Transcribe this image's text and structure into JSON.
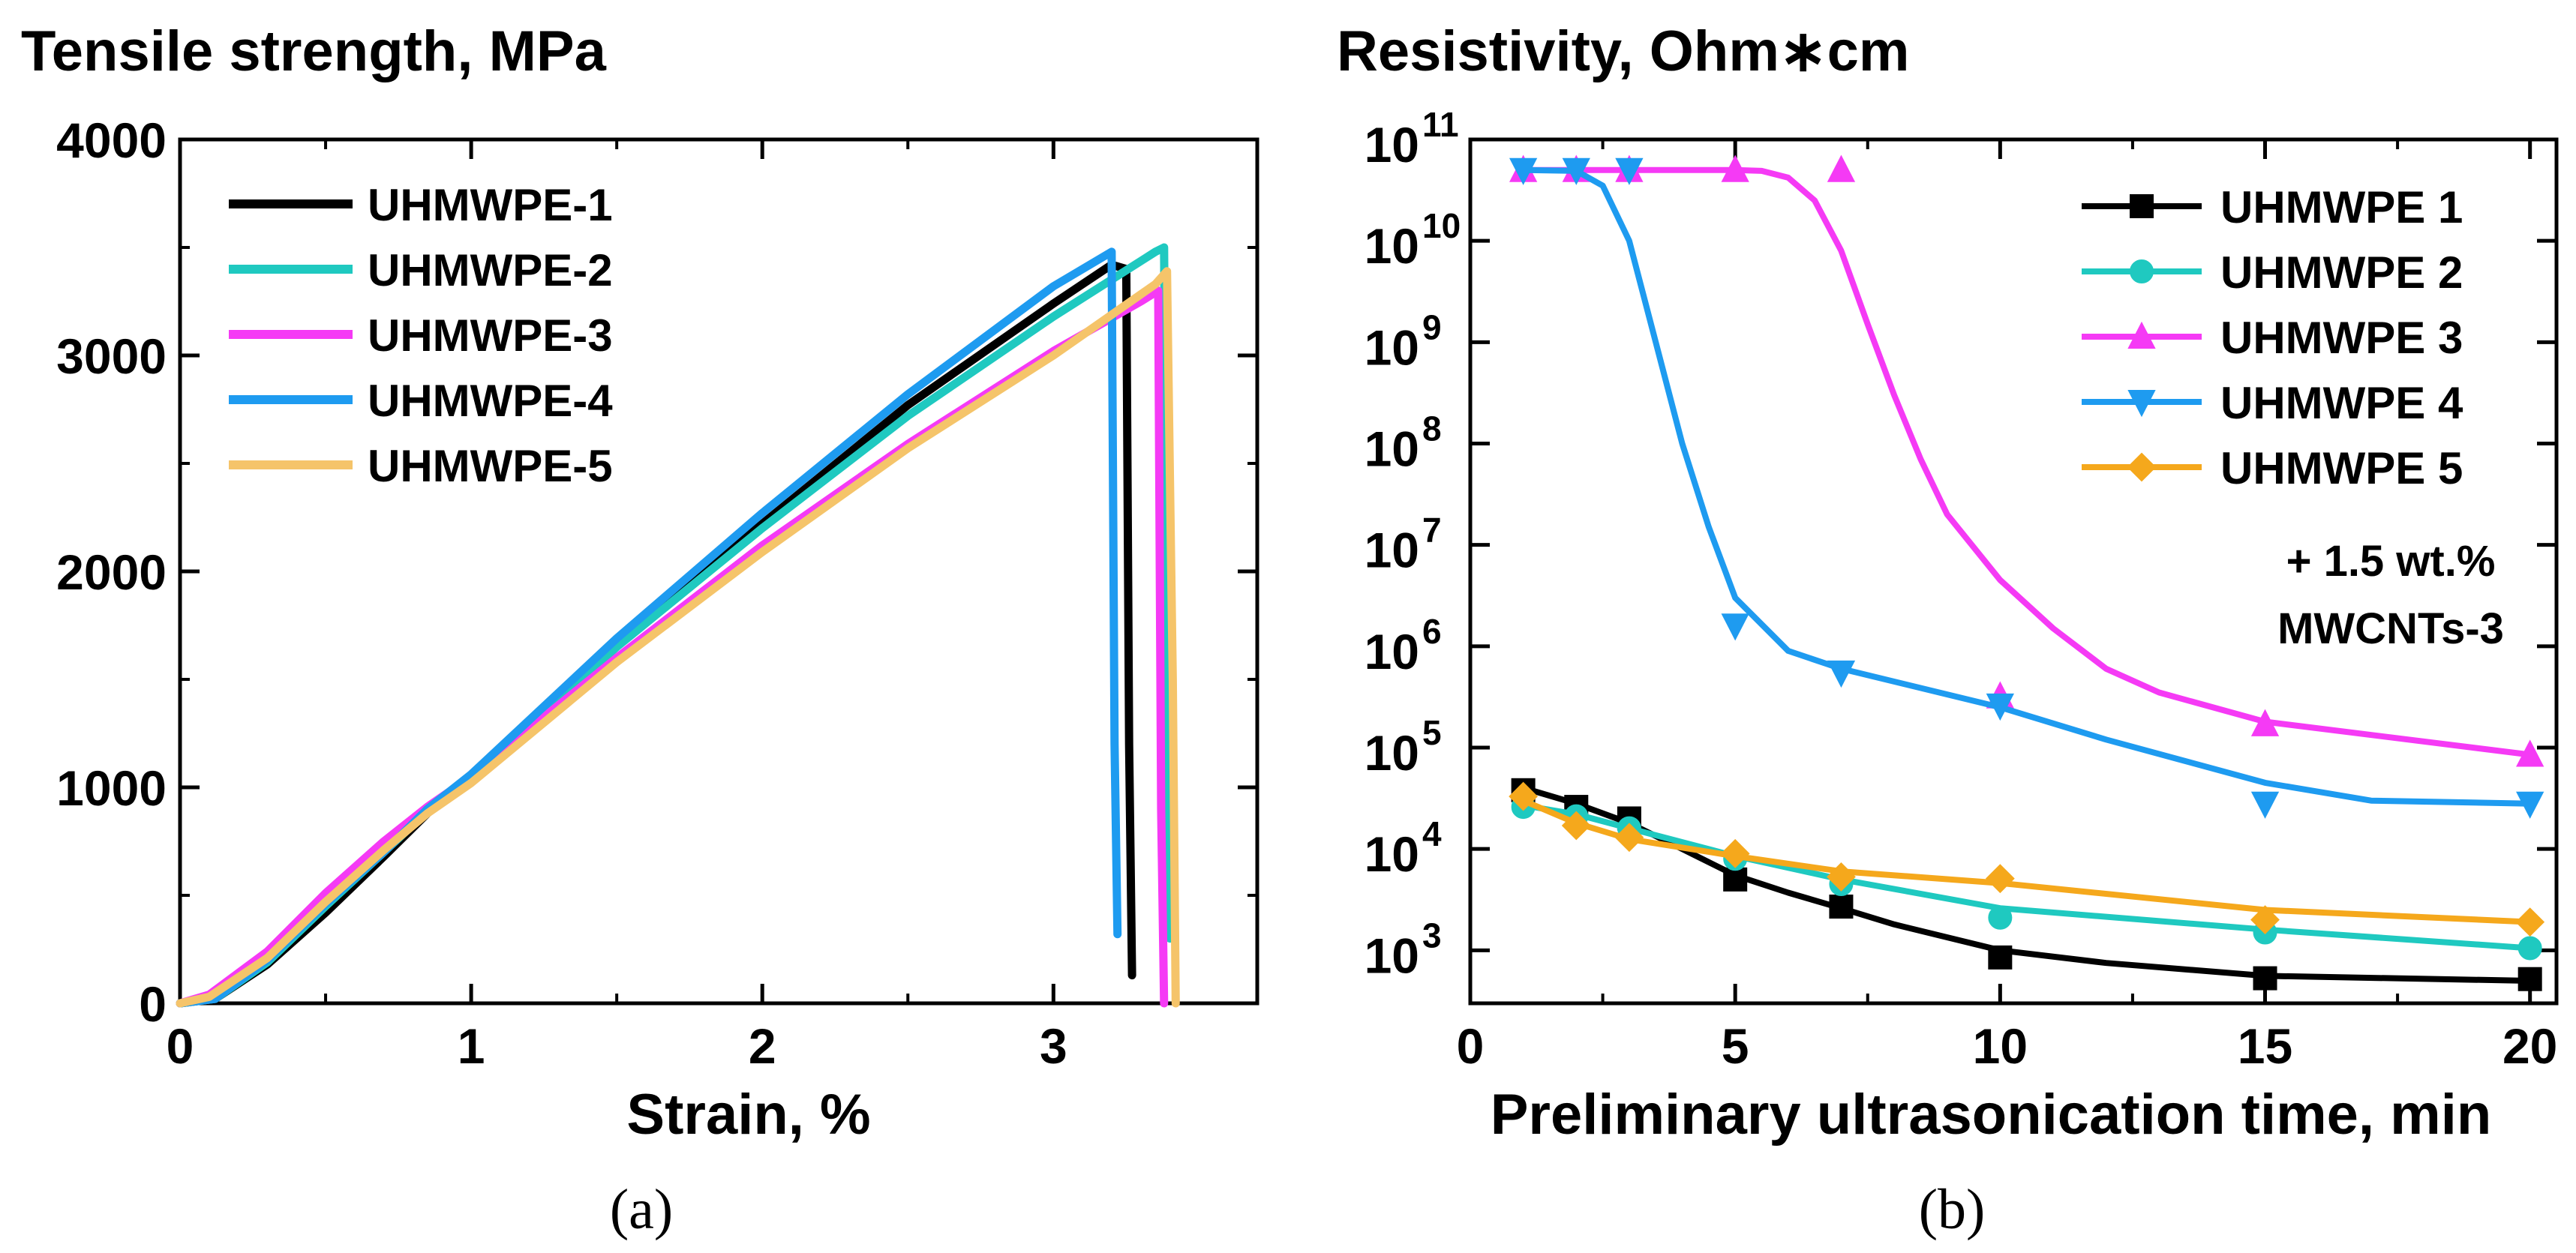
{
  "chart_data": [
    {
      "type": "line",
      "title": "Tensile strength, MPa",
      "xlabel": "Strain, %",
      "ylabel": "",
      "xlim": [
        0,
        3.7
      ],
      "ylim": [
        0,
        4000
      ],
      "xticks": [
        0,
        1,
        2,
        3
      ],
      "yticks": [
        0,
        1000,
        2000,
        3000,
        4000
      ],
      "caption": "(a)",
      "legend_position": "top-left",
      "series": [
        {
          "name": "UHMWPE-1",
          "color": "#000000",
          "x": [
            0,
            0.12,
            0.3,
            0.5,
            0.7,
            0.85,
            1.0,
            1.5,
            2.0,
            2.5,
            3.0,
            3.2,
            3.25,
            3.26,
            3.27
          ],
          "y": [
            0,
            20,
            180,
            420,
            680,
            880,
            1050,
            1660,
            2220,
            2770,
            3240,
            3420,
            3400,
            1200,
            130
          ]
        },
        {
          "name": "UHMWPE-2",
          "color": "#1FC9C0",
          "x": [
            0,
            0.12,
            0.3,
            0.5,
            0.7,
            0.85,
            1.0,
            1.5,
            2.0,
            2.5,
            3.0,
            3.35,
            3.38,
            3.39,
            3.4
          ],
          "y": [
            0,
            20,
            190,
            450,
            700,
            890,
            1050,
            1650,
            2200,
            2720,
            3180,
            3480,
            3500,
            1650,
            300
          ]
        },
        {
          "name": "UHMWPE-3",
          "color": "#F53AF5",
          "x": [
            0,
            0.1,
            0.3,
            0.5,
            0.7,
            0.85,
            1.0,
            1.5,
            2.0,
            2.5,
            3.0,
            3.3,
            3.36,
            3.37,
            3.38
          ],
          "y": [
            0,
            40,
            240,
            510,
            750,
            910,
            1050,
            1600,
            2120,
            2590,
            3020,
            3250,
            3300,
            900,
            0
          ]
        },
        {
          "name": "UHMWPE-4",
          "color": "#1E9BF0",
          "x": [
            0,
            0.12,
            0.3,
            0.5,
            0.7,
            0.85,
            1.0,
            1.5,
            2.0,
            2.5,
            3.0,
            3.2,
            3.21,
            3.22
          ],
          "y": [
            0,
            20,
            200,
            460,
            700,
            900,
            1060,
            1690,
            2270,
            2820,
            3320,
            3480,
            1200,
            320
          ]
        },
        {
          "name": "UHMWPE-5",
          "color": "#F5C46A",
          "x": [
            0,
            0.1,
            0.3,
            0.5,
            0.7,
            0.85,
            1.0,
            1.5,
            2.0,
            2.5,
            3.0,
            3.35,
            3.39,
            3.41,
            3.42
          ],
          "y": [
            0,
            30,
            210,
            470,
            710,
            880,
            1020,
            1580,
            2090,
            2570,
            3000,
            3330,
            3390,
            1500,
            0
          ]
        }
      ]
    },
    {
      "type": "line",
      "title": "Resistivity, Ohm∗cm",
      "xlabel": "Preliminary ultrasonication time, min",
      "ylabel": "",
      "yscale": "log",
      "xlim": [
        0,
        20.5
      ],
      "ylim": [
        300,
        100000000000.0
      ],
      "xticks": [
        0,
        5,
        10,
        15,
        20
      ],
      "ytick_exponents": [
        3,
        4,
        5,
        6,
        7,
        8,
        9,
        10,
        11
      ],
      "tick_base": "10",
      "caption": "(b)",
      "legend_position": "top-right",
      "annotation": [
        "+ 1.5 wt.%",
        "MWCNTs-3"
      ],
      "series": [
        {
          "name": "UHMWPE 1",
          "color": "#000000",
          "marker": "square",
          "x": [
            1,
            2,
            3,
            5,
            7,
            10,
            15,
            20
          ],
          "y": [
            38000,
            26000,
            20000,
            5000,
            2700,
            850,
            530,
            520
          ],
          "fit_x": [
            1,
            2,
            3,
            4,
            5,
            6,
            7,
            8,
            10,
            12,
            15,
            20
          ],
          "fit_y": [
            40000,
            28000,
            18000,
            10000,
            5500,
            3700,
            2600,
            1800,
            1000,
            750,
            560,
            500
          ]
        },
        {
          "name": "UHMWPE 2",
          "color": "#1FC9C0",
          "marker": "circle",
          "x": [
            1,
            2,
            3,
            5,
            7,
            10,
            15,
            20
          ],
          "y": [
            26000,
            21000,
            16000,
            8000,
            4500,
            2100,
            1500,
            1050
          ],
          "fit_x": [
            1,
            2,
            3,
            5,
            7,
            10,
            15,
            20
          ],
          "fit_y": [
            27000,
            22000,
            16000,
            8500,
            5000,
            2600,
            1600,
            1050
          ]
        },
        {
          "name": "UHMWPE 3",
          "color": "#F53AF5",
          "marker": "triangle-up",
          "x": [
            1,
            2,
            3,
            5,
            7,
            10,
            15,
            20
          ],
          "y": [
            50000000000.0,
            50000000000.0,
            50000000000.0,
            50000000000.0,
            50000000000.0,
            320000,
            170000,
            85000
          ],
          "fit_x": [
            1,
            3,
            5,
            5.5,
            6,
            6.5,
            7,
            7.5,
            8,
            8.5,
            9,
            10,
            11,
            12,
            13,
            15,
            20
          ],
          "fit_y": [
            50000000000.0,
            50000000000.0,
            50000000000.0,
            49000000000.0,
            42000000000.0,
            25000000000.0,
            8000000000.0,
            1500000000.0,
            300000000.0,
            70000000.0,
            20000000.0,
            4500000.0,
            1500000.0,
            600000,
            350000,
            180000,
            85000
          ]
        },
        {
          "name": "UHMWPE 4",
          "color": "#1E9BF0",
          "marker": "triangle-down",
          "x": [
            1,
            2,
            3,
            5,
            7,
            10,
            15,
            20
          ],
          "y": [
            50000000000.0,
            50000000000.0,
            50000000000.0,
            1600000.0,
            550000,
            260000,
            28000,
            28000
          ],
          "fit_x": [
            1,
            2,
            2.5,
            3,
            3.5,
            4,
            4.5,
            5,
            6,
            7,
            10,
            12,
            15,
            17,
            20
          ],
          "fit_y": [
            50000000000.0,
            49000000000.0,
            35000000000.0,
            10000000000.0,
            1000000000.0,
            100000000.0,
            15000000.0,
            3000000.0,
            900000,
            600000,
            250000,
            120000,
            45000,
            30000,
            28000
          ]
        },
        {
          "name": "UHMWPE 5",
          "color": "#F5A81C",
          "marker": "diamond",
          "x": [
            1,
            2,
            3,
            5,
            7,
            10,
            15,
            20
          ],
          "y": [
            33000,
            17000,
            13000,
            9000,
            5300,
            5100,
            2000,
            1900
          ],
          "fit_x": [
            1,
            2,
            3,
            5,
            7,
            10,
            15,
            20
          ],
          "fit_y": [
            30000,
            18000,
            12500,
            8500,
            6000,
            4600,
            2500,
            1900
          ]
        }
      ]
    }
  ]
}
